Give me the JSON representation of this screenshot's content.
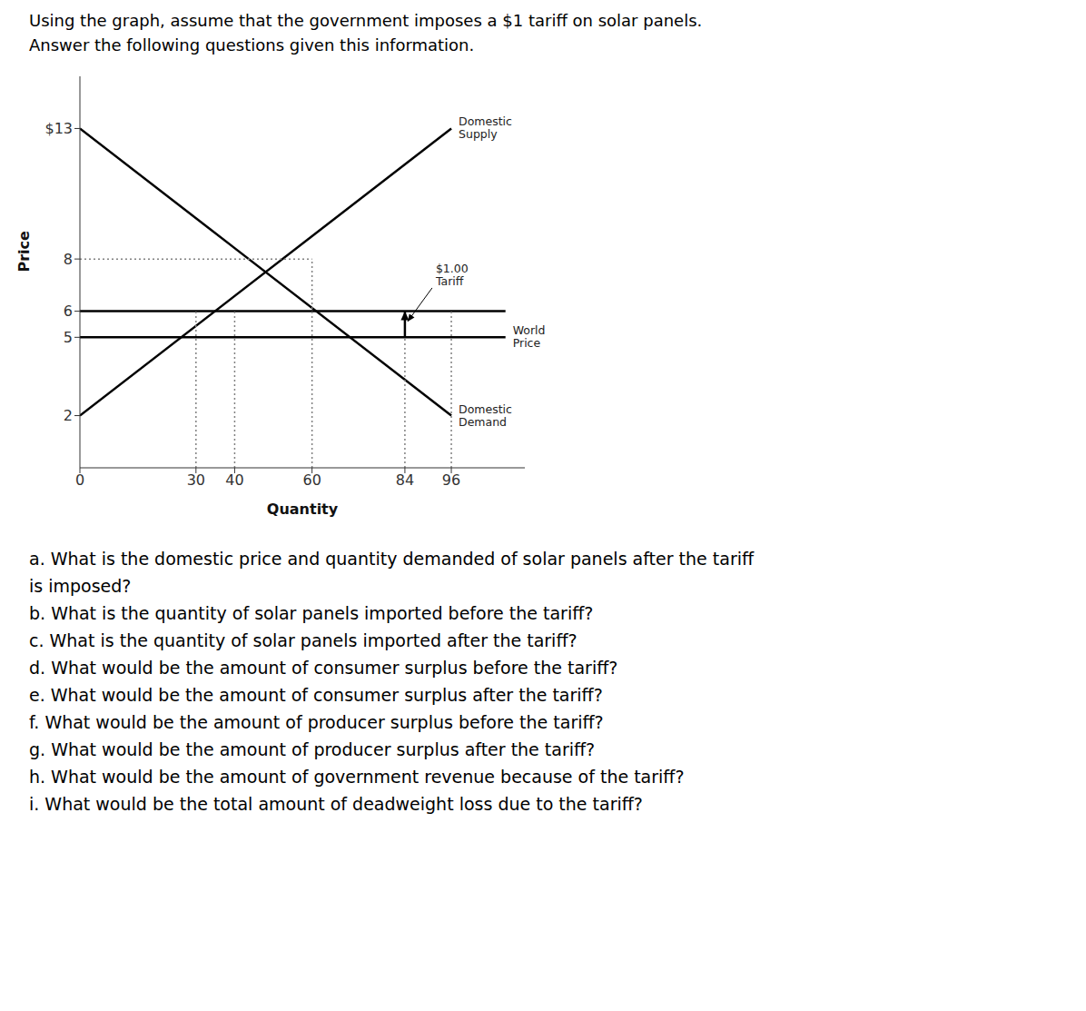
{
  "chart_data": {
    "type": "line",
    "title": "Using the graph, assume that the government imposes a $1 tariff on solar panels.",
    "subtitle": "Answer the following questions given this information.",
    "xlabel": "Quantity",
    "ylabel": "Price",
    "xlim": [
      0,
      115
    ],
    "ylim": [
      0,
      15
    ],
    "xticks": [
      0,
      30,
      40,
      60,
      84,
      96
    ],
    "yticks": [
      2,
      5,
      6,
      8,
      {
        "value": 13,
        "label": "$13"
      }
    ],
    "grid": false,
    "series": [
      {
        "name": "Domestic\nSupply",
        "x": [
          0,
          96
        ],
        "values": [
          2,
          13
        ],
        "color": "black",
        "line_style": "solid"
      },
      {
        "name": "Domestic\nDemand",
        "x": [
          0,
          96
        ],
        "values": [
          13,
          2
        ],
        "color": "black",
        "line_style": "solid"
      },
      {
        "x": [
          0,
          110
        ],
        "values": [
          6,
          6
        ],
        "color": "black",
        "line_style": "solid"
      },
      {
        "name": "World\nPrice",
        "x": [
          0,
          110
        ],
        "values": [
          5,
          5
        ],
        "color": "black",
        "line_style": "solid"
      },
      {
        "x": [
          60,
          60
        ],
        "values": [
          0,
          8
        ],
        "color": "gray",
        "line_style": "dotted"
      },
      {
        "x": [
          0,
          60
        ],
        "values": [
          8,
          8
        ],
        "color": "gray",
        "line_style": "dotted"
      },
      {
        "x": [
          30,
          30
        ],
        "values": [
          0,
          6
        ],
        "color": "gray",
        "line_style": "dotted"
      },
      {
        "x": [
          40,
          40
        ],
        "values": [
          0,
          6
        ],
        "color": "gray",
        "line_style": "dotted"
      },
      {
        "x": [
          84,
          84
        ],
        "values": [
          0,
          6
        ],
        "color": "gray",
        "line_style": "dotted"
      },
      {
        "x": [
          96,
          96
        ],
        "values": [
          0,
          6
        ],
        "color": "gray",
        "line_style": "dotted"
      },
      {
        "x": [
          84,
          84
        ],
        "values": [
          5,
          6
        ],
        "color": "black",
        "line_style": "solid",
        "marker": "arrow"
      }
    ],
    "annotations": [
      {
        "text": "$1.00\nTariff",
        "x": 84,
        "y": 5.5
      },
      "a. What is the domestic price and quantity demanded of solar panels after the tariff",
      "is imposed?",
      "b. What is the quantity of solar panels imported before the tariff?",
      "c. What is the quantity of solar panels imported after the tariff?",
      "d. What would be the amount of consumer surplus before the tariff?",
      "e. What would be the amount of consumer surplus after the tariff?",
      "f. What would be the amount of producer surplus before the tariff?",
      "g. What would be the amount of producer surplus after the tariff?",
      "h. What would be the amount of government revenue because of the tariff?",
      "i. What would be the total amount of deadweight loss due to the tariff?"
    ]
  }
}
